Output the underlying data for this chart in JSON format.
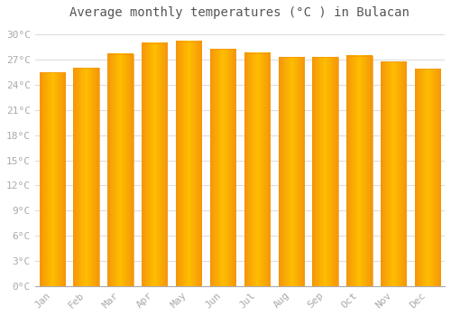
{
  "title": "Average monthly temperatures (°C ) in Bulacan",
  "months": [
    "Jan",
    "Feb",
    "Mar",
    "Apr",
    "May",
    "Jun",
    "Jul",
    "Aug",
    "Sep",
    "Oct",
    "Nov",
    "Dec"
  ],
  "values": [
    25.5,
    26.0,
    27.7,
    29.0,
    29.2,
    28.3,
    27.8,
    27.3,
    27.3,
    27.5,
    26.8,
    25.9
  ],
  "bar_color_center": "#FFBE00",
  "bar_color_edge": "#F5960A",
  "background_color": "#FFFFFF",
  "grid_color": "#DDDDDD",
  "yticks": [
    0,
    3,
    6,
    9,
    12,
    15,
    18,
    21,
    24,
    27,
    30
  ],
  "ylim": [
    0,
    31
  ],
  "title_fontsize": 10,
  "tick_fontsize": 8,
  "tick_color": "#AAAAAA",
  "font_family": "monospace"
}
